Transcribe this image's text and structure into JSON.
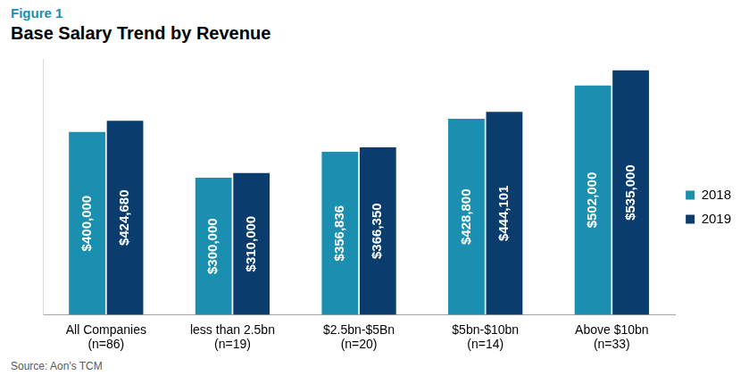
{
  "chart_data": {
    "type": "bar",
    "title": "Base Salary Trend by Revenue",
    "annotations": [
      "Figure 1"
    ],
    "source": "Source: Aon's TCM",
    "categories": [
      [
        "All Companies",
        "(n=86)"
      ],
      [
        "less than 2.5bn",
        "(n=19)"
      ],
      [
        "$2.5bn-$5Bn",
        "(n=20)"
      ],
      [
        "$5bn-$10bn",
        "(n=14)"
      ],
      [
        "Above $10bn",
        "(n=33)"
      ]
    ],
    "series": [
      {
        "name": "2018",
        "color": "#1a8fb0",
        "values": [
          400000,
          300000,
          356836,
          428800,
          502000
        ],
        "value_labels": [
          "$400,000",
          "$300,000",
          "$356,836",
          "$428,800",
          "$502,000"
        ]
      },
      {
        "name": "2019",
        "color": "#0b3c6e",
        "values": [
          424680,
          310000,
          366350,
          444101,
          535000
        ],
        "value_labels": [
          "$424,680",
          "$310,000",
          "$366,350",
          "$444,101",
          "$535,000"
        ]
      }
    ],
    "ylim": [
      0,
      560000
    ],
    "grid": false,
    "legend": "right",
    "data_labels": true,
    "tick_labels": "x"
  }
}
